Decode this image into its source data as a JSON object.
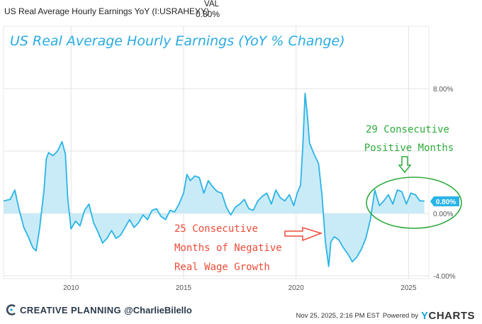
{
  "header": {
    "series_name": "US Real Average Hourly Earnings YoY (I:USRAHEYY)",
    "val_heading": "VAL",
    "current_value": "0.80%"
  },
  "chart_data": {
    "type": "area",
    "title": "US Real Average Hourly Earnings (YoY % Change)",
    "xlabel": "",
    "ylabel": "",
    "xlim": [
      2007.0,
      2025.9
    ],
    "ylim": [
      -4.0,
      8.0
    ],
    "x_ticks": [
      2010,
      2015,
      2020,
      2025
    ],
    "x_tick_labels": [
      "2010",
      "2015",
      "2020",
      "2025"
    ],
    "y_ticks": [
      8,
      4,
      0,
      -4
    ],
    "y_tick_labels": [
      "8.00%",
      "",
      "0.00%",
      "-4.00%"
    ],
    "grid": true,
    "last_value_label": "0.80%",
    "series": [
      {
        "x": [
          2007.0,
          2007.3,
          2007.5,
          2007.7,
          2007.9,
          2008.1,
          2008.3,
          2008.45,
          2008.6,
          2008.8,
          2008.9,
          2009.0,
          2009.2,
          2009.4,
          2009.6,
          2009.75,
          2009.85,
          2010.0,
          2010.2,
          2010.4,
          2010.6,
          2010.8,
          2011.0,
          2011.2,
          2011.4,
          2011.6,
          2011.8,
          2012.0,
          2012.2,
          2012.4,
          2012.6,
          2012.8,
          2013.0,
          2013.2,
          2013.4,
          2013.6,
          2013.8,
          2014.0,
          2014.2,
          2014.4,
          2014.6,
          2014.8,
          2015.0,
          2015.15,
          2015.3,
          2015.5,
          2015.7,
          2015.9,
          2016.1,
          2016.3,
          2016.5,
          2016.7,
          2016.9,
          2017.1,
          2017.3,
          2017.5,
          2017.7,
          2017.9,
          2018.1,
          2018.3,
          2018.5,
          2018.7,
          2018.9,
          2019.1,
          2019.3,
          2019.5,
          2019.7,
          2019.9,
          2020.05,
          2020.2,
          2020.3,
          2020.4,
          2020.5,
          2020.6,
          2020.8,
          2021.0,
          2021.15,
          2021.3,
          2021.45,
          2021.55,
          2021.7,
          2021.9,
          2022.1,
          2022.3,
          2022.5,
          2022.7,
          2022.9,
          2023.1,
          2023.3,
          2023.5,
          2023.7,
          2023.9,
          2024.1,
          2024.3,
          2024.5,
          2024.7,
          2024.9,
          2025.1,
          2025.3,
          2025.5,
          2025.7
        ],
        "y": [
          0.8,
          0.9,
          1.5,
          0.2,
          -0.9,
          -1.5,
          -2.2,
          -2.4,
          -1.0,
          1.5,
          3.5,
          3.9,
          3.7,
          4.0,
          4.6,
          3.8,
          1.0,
          -1.0,
          -0.5,
          -0.8,
          0.2,
          0.6,
          -0.6,
          -1.2,
          -1.9,
          -1.6,
          -1.1,
          -1.6,
          -1.4,
          -0.9,
          -0.4,
          -0.9,
          -0.6,
          -0.1,
          -0.4,
          0.2,
          0.3,
          -0.2,
          -0.4,
          0.2,
          0.1,
          0.6,
          1.3,
          2.5,
          2.1,
          2.4,
          2.3,
          1.3,
          2.1,
          1.7,
          1.4,
          1.3,
          0.4,
          -0.1,
          0.4,
          0.6,
          0.9,
          0.3,
          0.2,
          0.8,
          1.1,
          1.3,
          0.6,
          1.5,
          1.0,
          0.8,
          1.2,
          0.5,
          1.3,
          1.8,
          4.3,
          7.7,
          6.3,
          4.5,
          3.8,
          3.2,
          1.2,
          -1.8,
          -3.4,
          -1.8,
          -1.5,
          -1.7,
          -2.2,
          -2.6,
          -3.1,
          -2.8,
          -2.3,
          -1.6,
          -0.4,
          1.5,
          0.5,
          0.8,
          1.2,
          0.6,
          1.5,
          1.4,
          0.6,
          1.3,
          1.2,
          0.8,
          0.8
        ]
      }
    ],
    "annotations": [
      {
        "text_lines": [
          "29 Consecutive",
          "Positive Months"
        ],
        "color": "#2eaa3c"
      },
      {
        "text_lines": [
          "25 Consecutive",
          "Months of Negative",
          "Real Wage Growth"
        ],
        "color": "#ee4b38"
      }
    ]
  },
  "footer": {
    "brand": "CREATIVE PLANNING",
    "handle": "@CharlieBilello",
    "timestamp": "Nov 25, 2025, 2:16 PM EST",
    "powered_by": "Powered by",
    "ycharts_y": "Y",
    "ycharts_rest": "CHARTS"
  },
  "colors": {
    "line": "#2ab4e6",
    "fill": "#c9ebf7",
    "title": "#29abe2",
    "grid": "#e3e3e3",
    "green": "#2eaa3c",
    "red": "#ee4b38"
  }
}
